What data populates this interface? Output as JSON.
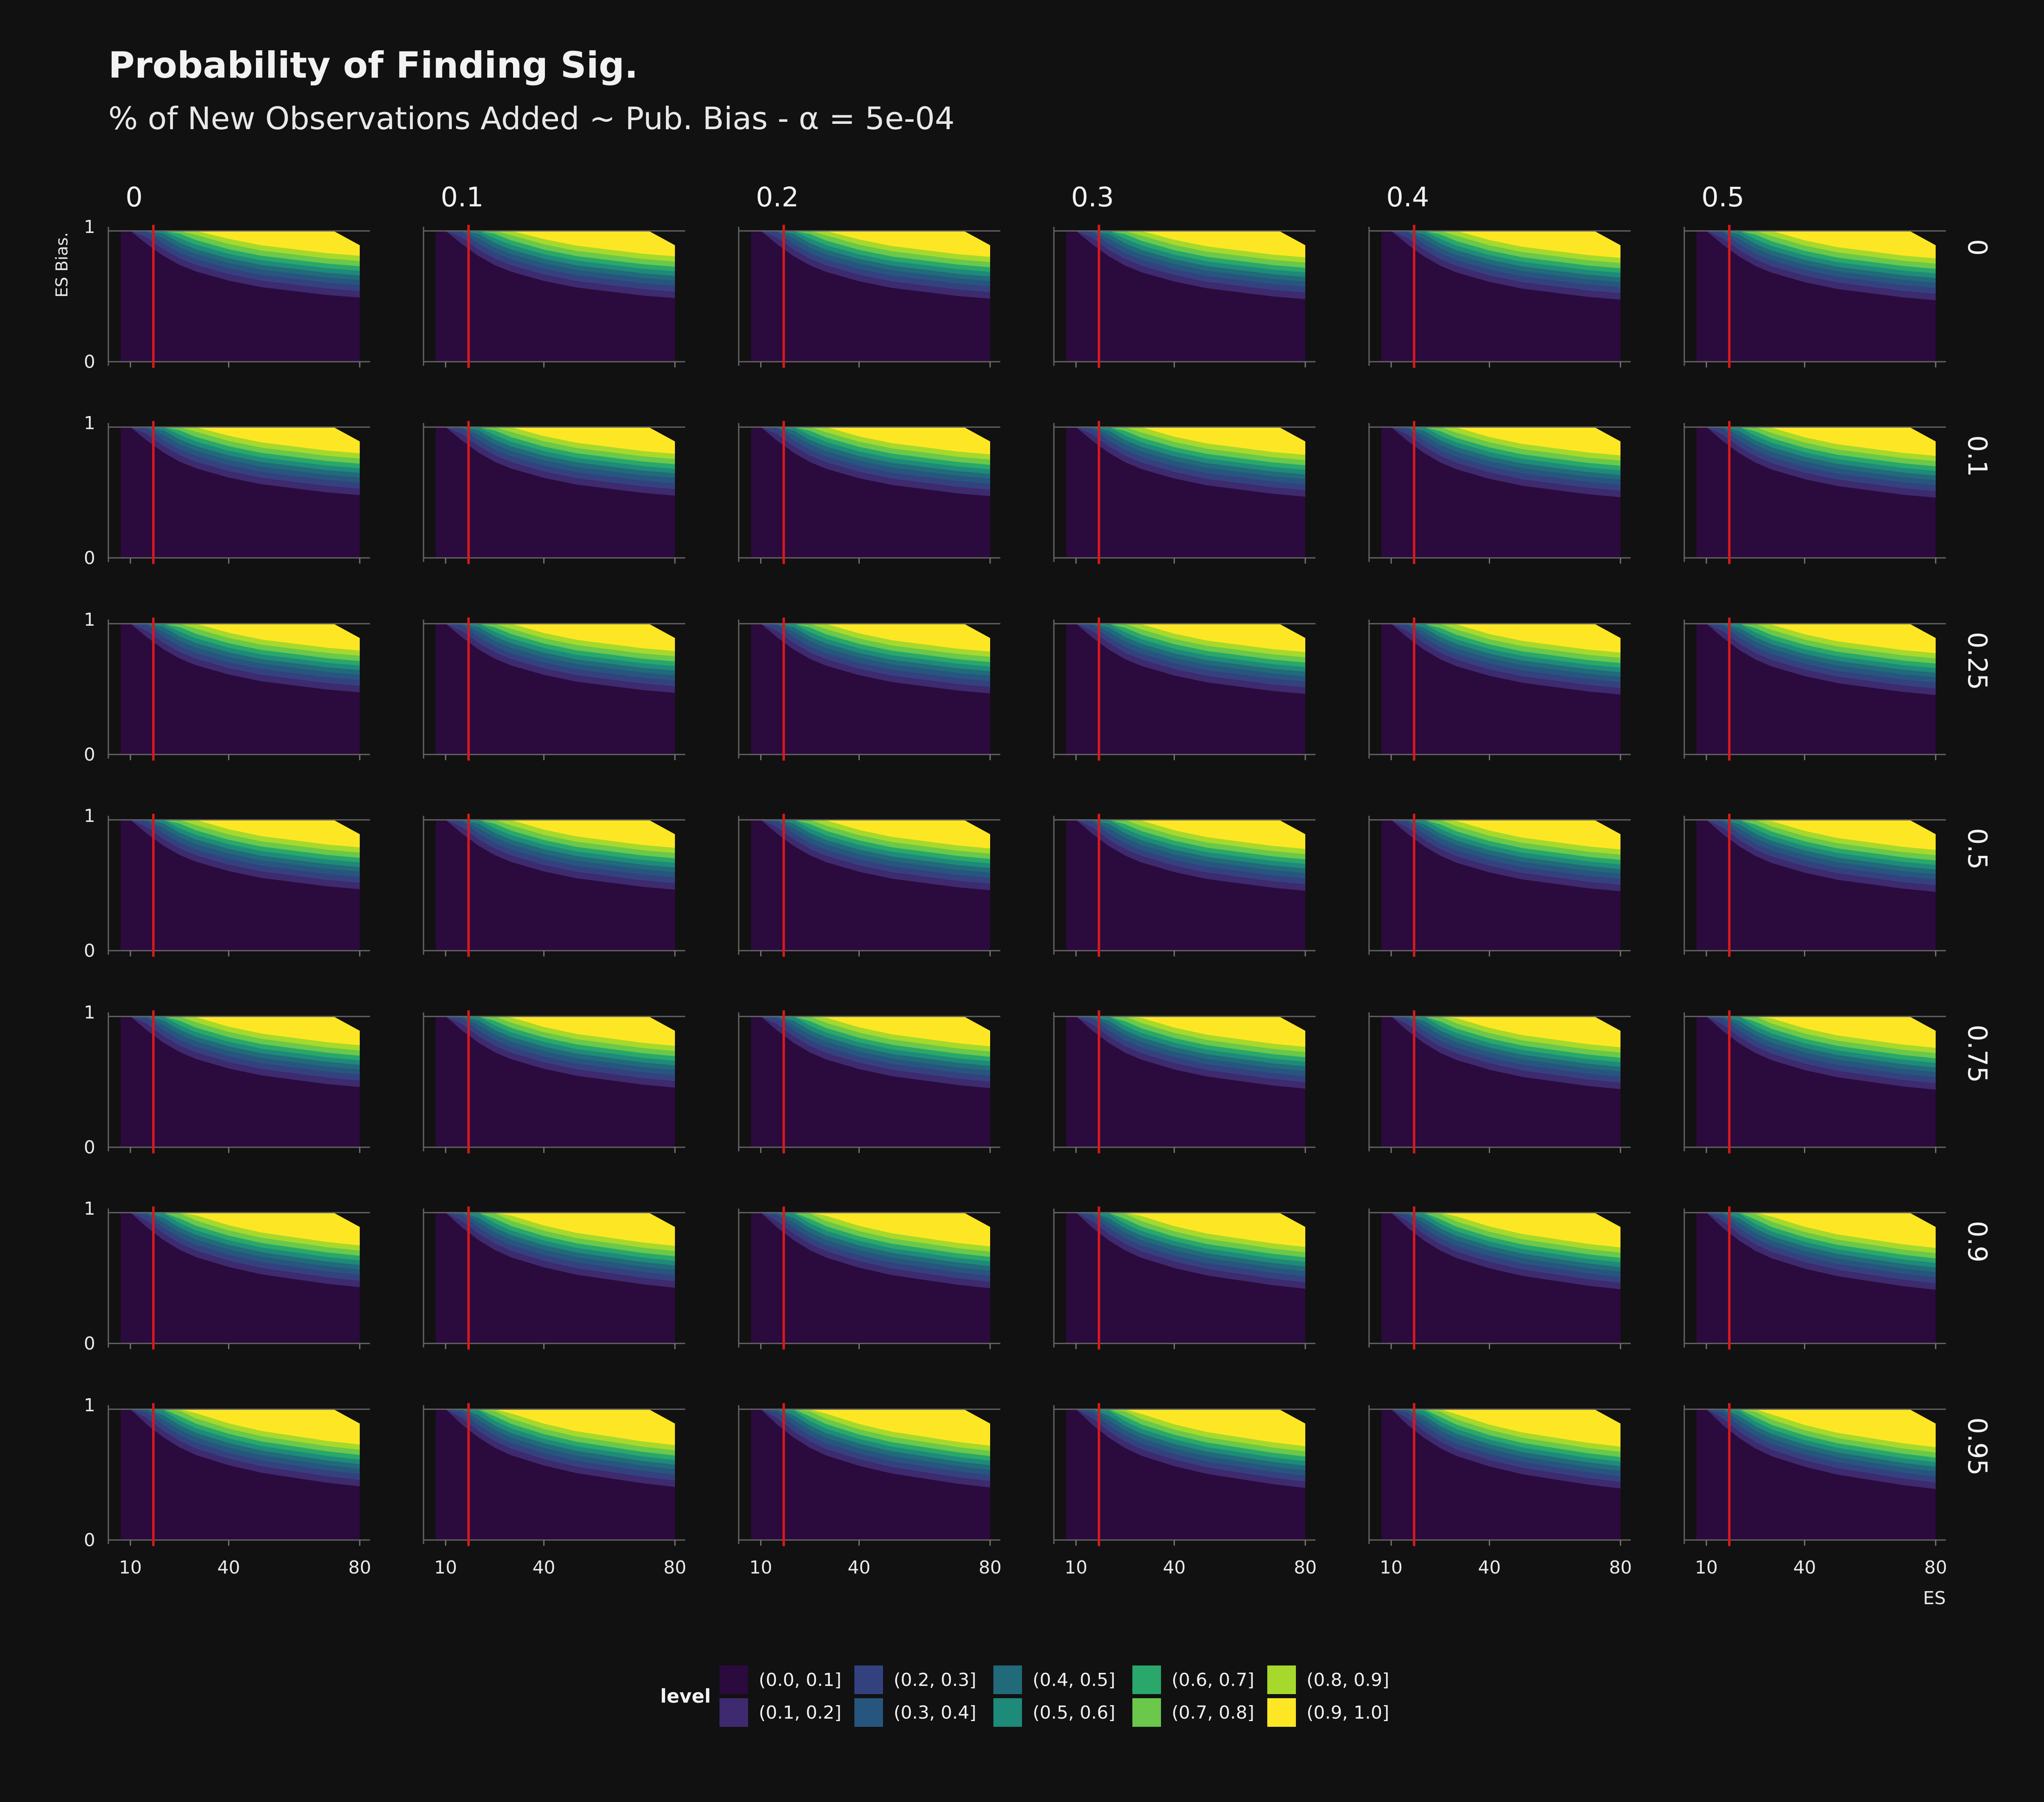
{
  "chart_data": {
    "type": "heatmap",
    "title": "Probability of Finding Sig.",
    "subtitle": "% of New Observations Added ~ Pub. Bias - α = 5e-04",
    "xlabel": "ES",
    "ylabel": "ES Bias.",
    "x_ticks": [
      "10",
      "40",
      "80"
    ],
    "y_ticks": [
      "0",
      "1"
    ],
    "xlim": [
      7,
      80
    ],
    "ylim": [
      0,
      1
    ],
    "reference_line_x": 17,
    "reference_line_color": "#d7191c",
    "facet_columns": [
      "0",
      "0.1",
      "0.2",
      "0.3",
      "0.4",
      "0.5"
    ],
    "facet_rows": [
      "0",
      "0.1",
      "0.25",
      "0.5",
      "0.75",
      "0.9",
      "0.95"
    ],
    "legend_title": "level",
    "legend": [
      {
        "label": "(0.0, 0.1]",
        "color": "#2b0a3d"
      },
      {
        "label": "(0.1, 0.2]",
        "color": "#3e2a6e"
      },
      {
        "label": "(0.2, 0.3]",
        "color": "#33427f"
      },
      {
        "label": "(0.3, 0.4]",
        "color": "#26567e"
      },
      {
        "label": "(0.4, 0.5]",
        "color": "#216a7a"
      },
      {
        "label": "(0.5, 0.6]",
        "color": "#1e8a79"
      },
      {
        "label": "(0.6, 0.7]",
        "color": "#2aa76a"
      },
      {
        "label": "(0.7, 0.8]",
        "color": "#6ac84a"
      },
      {
        "label": "(0.8, 0.9]",
        "color": "#a6d92c"
      },
      {
        "label": "(0.9, 1.0]",
        "color": "#fde725"
      }
    ],
    "contour_boundaries": {
      "description_of_values": "ES Bias value of the lower edge of each level band, at ES values",
      "es": [
        7,
        10,
        15,
        20,
        25,
        30,
        40,
        50,
        60,
        70,
        80
      ],
      "base_threshold_y": [
        1.0,
        0.96,
        0.84,
        0.75,
        0.68,
        0.63,
        0.56,
        0.51,
        0.48,
        0.45,
        0.43
      ],
      "band_offsets": [
        0.0,
        0.06,
        0.11,
        0.155,
        0.195,
        0.23,
        0.265,
        0.3,
        0.34,
        0.38
      ]
    },
    "row_adjustment": [
      0.0,
      0.01,
      0.015,
      0.02,
      0.03,
      0.06,
      0.08
    ]
  }
}
